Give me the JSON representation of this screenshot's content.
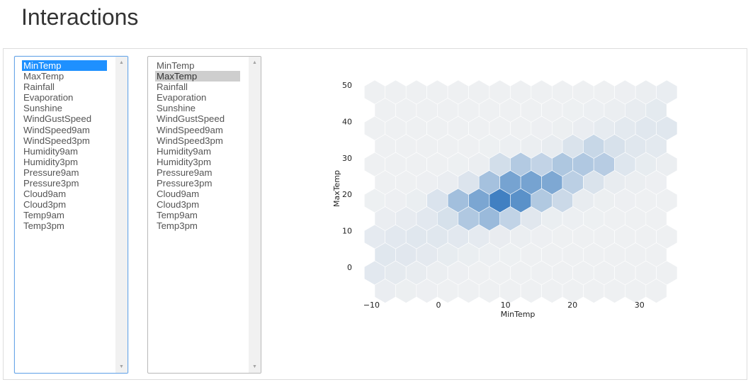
{
  "page": {
    "title": "Interactions"
  },
  "x_select": {
    "options": [
      "MinTemp",
      "MaxTemp",
      "Rainfall",
      "Evaporation",
      "Sunshine",
      "WindGustSpeed",
      "WindSpeed9am",
      "WindSpeed3pm",
      "Humidity9am",
      "Humidity3pm",
      "Pressure9am",
      "Pressure3pm",
      "Cloud9am",
      "Cloud3pm",
      "Temp9am",
      "Temp3pm"
    ],
    "selected": "MinTemp"
  },
  "y_select": {
    "options": [
      "MinTemp",
      "MaxTemp",
      "Rainfall",
      "Evaporation",
      "Sunshine",
      "WindGustSpeed",
      "WindSpeed9am",
      "WindSpeed3pm",
      "Humidity9am",
      "Humidity3pm",
      "Pressure9am",
      "Pressure3pm",
      "Cloud9am",
      "Cloud3pm",
      "Temp9am",
      "Temp3pm"
    ],
    "selected": "MaxTemp"
  },
  "icons": {
    "scroll_up": "▲",
    "scroll_down": "▼"
  },
  "chart_data": {
    "type": "hexbin",
    "xlabel": "MinTemp",
    "ylabel": "MaxTemp",
    "xlim": [
      -11,
      35
    ],
    "ylim": [
      -7,
      50
    ],
    "xticks": [
      "−10",
      "0",
      "10",
      "20",
      "30"
    ],
    "xtick_values": [
      -10,
      0,
      10,
      20,
      30
    ],
    "yticks": [
      "0",
      "10",
      "20",
      "30",
      "40",
      "50"
    ],
    "ytick_values": [
      0,
      10,
      20,
      30,
      40,
      50
    ],
    "colormap": [
      "#eef0f2",
      "#3a7cc0"
    ],
    "hex_density": [
      {
        "x": 10,
        "y": 19,
        "d": 1.0
      },
      {
        "x": 9,
        "y": 17.5,
        "d": 0.85
      },
      {
        "x": 11.5,
        "y": 18,
        "d": 0.8
      },
      {
        "x": 8,
        "y": 20,
        "d": 0.8
      },
      {
        "x": 12,
        "y": 21,
        "d": 0.85
      },
      {
        "x": 10,
        "y": 22,
        "d": 0.75
      },
      {
        "x": 6,
        "y": 19,
        "d": 0.6
      },
      {
        "x": 14,
        "y": 22,
        "d": 0.7
      },
      {
        "x": 15,
        "y": 25,
        "d": 0.6
      },
      {
        "x": 17,
        "y": 23,
        "d": 0.55
      },
      {
        "x": 8,
        "y": 15,
        "d": 0.55
      },
      {
        "x": 4,
        "y": 17,
        "d": 0.5
      },
      {
        "x": 6,
        "y": 15,
        "d": 0.45
      },
      {
        "x": 12,
        "y": 26,
        "d": 0.5
      },
      {
        "x": 18,
        "y": 26,
        "d": 0.5
      },
      {
        "x": 16,
        "y": 20,
        "d": 0.4
      },
      {
        "x": 20,
        "y": 26,
        "d": 0.4
      },
      {
        "x": 23,
        "y": 30,
        "d": 0.45
      }
    ]
  }
}
